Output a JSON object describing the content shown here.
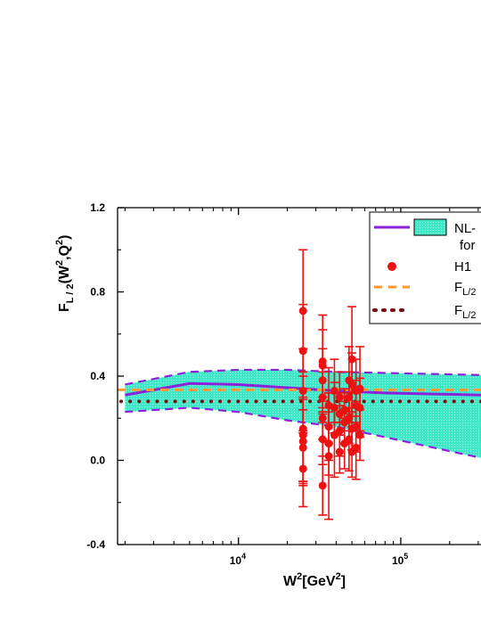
{
  "chart_data": {
    "type": "scatter",
    "title": "",
    "xlabel": "W²[GeV²]",
    "ylabel": "F_L/2(W²,Q²)",
    "xscale": "log",
    "xlim": [
      1800,
      320000
    ],
    "ylim": [
      -0.4,
      1.2
    ],
    "yticks": [
      -0.4,
      0.0,
      0.4,
      0.8,
      1.2
    ],
    "ytick_labels": [
      "-0.4",
      "0.0",
      "0.4",
      "0.8",
      "1.2"
    ],
    "xticks": [
      10000,
      100000
    ],
    "grid": false,
    "legend_position": "top-right",
    "legend": [
      {
        "key": "nl",
        "label": "NL-",
        "label2": "for",
        "style": "line+band"
      },
      {
        "key": "h1",
        "label": "H1",
        "style": "marker"
      },
      {
        "key": "dashed",
        "label": "F",
        "sub": "L/2",
        "style": "dashed"
      },
      {
        "key": "dotted",
        "label": "F",
        "sub": "L/2",
        "style": "dotted"
      }
    ],
    "colors": {
      "band_fill": "#40E8C8",
      "band_edge": "#8B22D9",
      "central": "#8B22D9",
      "h1": "#EE1111",
      "dashed": "#FF9933",
      "dotted": "#7A1010"
    },
    "band": {
      "x": [
        2000,
        5000,
        10000,
        20000,
        40000,
        80000,
        160000,
        320000
      ],
      "upper": [
        0.36,
        0.42,
        0.43,
        0.43,
        0.42,
        0.415,
        0.41,
        0.405
      ],
      "lower": [
        0.23,
        0.25,
        0.23,
        0.19,
        0.16,
        0.11,
        0.06,
        0.01
      ],
      "central": [
        0.31,
        0.365,
        0.36,
        0.345,
        0.33,
        0.32,
        0.315,
        0.31
      ]
    },
    "series": [
      {
        "name": "H1",
        "points": [
          {
            "x": 25000,
            "y": 0.71,
            "err": 0.29
          },
          {
            "x": 25000,
            "y": 0.52,
            "err": 0.22
          },
          {
            "x": 25000,
            "y": 0.33,
            "err": 0.2
          },
          {
            "x": 25000,
            "y": 0.15,
            "err": 0.25
          },
          {
            "x": 25000,
            "y": 0.12,
            "err": 0.22
          },
          {
            "x": 25000,
            "y": 0.09,
            "err": 0.2
          },
          {
            "x": 25000,
            "y": 0.06,
            "err": 0.18
          },
          {
            "x": 25000,
            "y": -0.04,
            "err": 0.18
          },
          {
            "x": 33000,
            "y": 0.47,
            "err": 0.22
          },
          {
            "x": 33000,
            "y": 0.45,
            "err": 0.17
          },
          {
            "x": 33000,
            "y": 0.38,
            "err": 0.15
          },
          {
            "x": 33000,
            "y": 0.3,
            "err": 0.12
          },
          {
            "x": 33000,
            "y": 0.2,
            "err": 0.1
          },
          {
            "x": 33000,
            "y": 0.1,
            "err": 0.12
          },
          {
            "x": 33000,
            "y": -0.12,
            "err": 0.14
          },
          {
            "x": 36000,
            "y": 0.26,
            "err": 0.18
          },
          {
            "x": 36000,
            "y": 0.16,
            "err": 0.16
          },
          {
            "x": 36000,
            "y": 0.08,
            "err": 0.15
          },
          {
            "x": 36000,
            "y": 0.02,
            "err": 0.3
          },
          {
            "x": 39000,
            "y": 0.33,
            "err": 0.15
          },
          {
            "x": 39000,
            "y": 0.25,
            "err": 0.12
          },
          {
            "x": 39000,
            "y": 0.12,
            "err": 0.2
          },
          {
            "x": 42000,
            "y": 0.3,
            "err": 0.12
          },
          {
            "x": 42000,
            "y": 0.22,
            "err": 0.1
          },
          {
            "x": 42000,
            "y": 0.14,
            "err": 0.12
          },
          {
            "x": 42000,
            "y": 0.04,
            "err": 0.1
          },
          {
            "x": 45000,
            "y": 0.24,
            "err": 0.1
          },
          {
            "x": 45000,
            "y": 0.18,
            "err": 0.1
          },
          {
            "x": 45000,
            "y": 0.08,
            "err": 0.12
          },
          {
            "x": 48000,
            "y": 0.38,
            "err": 0.16
          },
          {
            "x": 48000,
            "y": 0.3,
            "err": 0.12
          },
          {
            "x": 48000,
            "y": 0.2,
            "err": 0.12
          },
          {
            "x": 48000,
            "y": 0.1,
            "err": 0.15
          },
          {
            "x": 50000,
            "y": 0.48,
            "err": 0.25
          },
          {
            "x": 50000,
            "y": 0.36,
            "err": 0.15
          },
          {
            "x": 50000,
            "y": 0.15,
            "err": 0.1
          },
          {
            "x": 50000,
            "y": 0.04,
            "err": 0.12
          },
          {
            "x": 53000,
            "y": 0.33,
            "err": 0.15
          },
          {
            "x": 53000,
            "y": 0.26,
            "err": 0.12
          },
          {
            "x": 53000,
            "y": 0.16,
            "err": 0.12
          },
          {
            "x": 53000,
            "y": 0.06,
            "err": 0.15
          },
          {
            "x": 56000,
            "y": 0.34,
            "err": 0.2
          },
          {
            "x": 56000,
            "y": 0.25,
            "err": 0.14
          },
          {
            "x": 56000,
            "y": 0.12,
            "err": 0.12
          }
        ]
      },
      {
        "name": "F_L/2 (dashed)",
        "style": "dashed",
        "y": 0.335
      },
      {
        "name": "F_L/2 (dotted)",
        "style": "dotted",
        "y": 0.28
      }
    ]
  }
}
